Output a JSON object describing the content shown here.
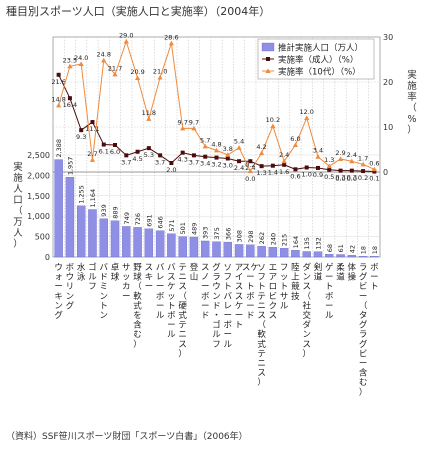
{
  "chart_data": {
    "type": "bar",
    "title": "種目別スポーツ人口（実施人口と実施率）（2004年）",
    "source": "（資料）SSF笹川スポーツ財団「スポーツ白書」（2006年）",
    "ylabel_left": "実施人口（万人）",
    "ylabel_right": "実施率（%）",
    "ylim_left": [
      0,
      2500
    ],
    "ylim_right": [
      0,
      30
    ],
    "left_ticks": [
      "2,500",
      "2,000",
      "1,500",
      "1,000",
      "500",
      "0"
    ],
    "right_ticks": [
      "30",
      "20",
      "10",
      "0"
    ],
    "categories": [
      [
        "ウ",
        "ォ",
        "ー",
        "キ",
        "ン",
        "グ"
      ],
      [
        "ボ",
        "ウ",
        "リ",
        "ン",
        "グ"
      ],
      [
        "水",
        "泳"
      ],
      [
        "ゴ",
        "ル",
        "フ"
      ],
      [
        "バ",
        "ド",
        "ミ",
        "ン",
        "ト",
        "ン"
      ],
      [
        "卓",
        "球"
      ],
      [
        "サ",
        "ッ",
        "カ",
        "ー"
      ],
      [
        "野",
        "球",
        "（",
        "軟",
        "式",
        "を",
        "含",
        "む",
        "）"
      ],
      [
        "ス",
        "キ",
        "ー"
      ],
      [
        "バ",
        "レ",
        "ー",
        "ボ",
        "ー",
        "ル"
      ],
      [
        "バ",
        "ス",
        "ケ",
        "ッ",
        "ト",
        "ボ",
        "ー",
        "ル"
      ],
      [
        "テ",
        "ニ",
        "ス",
        "（",
        "硬",
        "式",
        "テ",
        "ニ",
        "ス",
        "）"
      ],
      [
        "登",
        "山"
      ],
      [
        "ス",
        "ノ",
        "ー",
        "ボ",
        "ー",
        "ド"
      ],
      [
        "グ",
        "ラ",
        "ウ",
        "ン",
        "ド",
        "・",
        "ゴ",
        "ル",
        "フ"
      ],
      [
        "ソ",
        "フ",
        "ト",
        "バ",
        "レ",
        "ー",
        "ボ",
        "ー",
        "ル"
      ],
      [
        "ア",
        "イ",
        "ス",
        "ス",
        "ケ",
        "ー",
        "ト"
      ],
      [
        "スケ",
        "ー",
        "ト",
        "ボ",
        "ー",
        "ド"
      ],
      [
        "ソ",
        "フ",
        "ト",
        "テ",
        "ニ",
        "ス",
        "（",
        "軟",
        "式",
        "テ",
        "ニ",
        "ス",
        "）"
      ],
      [
        "エ",
        "ア",
        "ロ",
        "ビ",
        "ク",
        "ス"
      ],
      [
        "フ",
        "ッ",
        "ト",
        "サ",
        "ル"
      ],
      [
        "陸",
        "上",
        "競",
        "技"
      ],
      [
        "ダ",
        "ン",
        "ス",
        "（",
        "社",
        "交",
        "ダ",
        "ン",
        "ス",
        "）"
      ],
      [
        "剣",
        "道"
      ],
      [
        "ゲ",
        "ー",
        "ト",
        "ボ",
        "ー",
        "ル"
      ],
      [
        "柔",
        "道"
      ],
      [
        "体",
        "操"
      ],
      [
        "ラ",
        "グ",
        "ビ",
        "ー",
        "（",
        "タ",
        "グ",
        "ラ",
        "グ",
        "ビ",
        "ー",
        "含",
        "む",
        "）"
      ],
      [
        "ボ",
        "ー",
        "ト"
      ]
    ],
    "series": [
      {
        "name": "推計実施人口（万人）",
        "kind": "bar",
        "axis": "left",
        "color": "#8f8fe6",
        "values": [
          2388,
          1957,
          1255,
          1164,
          939,
          889,
          749,
          726,
          691,
          646,
          571,
          501,
          489,
          393,
          375,
          366,
          308,
          298,
          262,
          240,
          215,
          164,
          135,
          132,
          68,
          61,
          42,
          18,
          18
        ],
        "labels": [
          "2,388",
          "1,957",
          "1,255",
          "1,164",
          "939",
          "889",
          "749",
          "726",
          "691",
          "646",
          "571",
          "501",
          "489",
          "393",
          "375",
          "366",
          "308",
          "298",
          "262",
          "240",
          "215",
          "164",
          "135",
          "132",
          "68",
          "61",
          "42",
          "18",
          "18"
        ]
      },
      {
        "name": "実施率（成人）（%）",
        "kind": "line",
        "axis": "right",
        "color": "#4a0c0c",
        "values": [
          21.6,
          16.4,
          9.3,
          11.1,
          6.1,
          6.0,
          3.7,
          4.5,
          5.3,
          3.7,
          2.0,
          4.3,
          3.7,
          3.4,
          3.2,
          3.0,
          2.4,
          2.4,
          1.3,
          1.4,
          1.6,
          0.6,
          1.0,
          0.9,
          0.5,
          0.3,
          0.3,
          0.2,
          0.1
        ],
        "labels": [
          "21.6",
          "16.4",
          "9.3",
          "11.1",
          "6.1",
          "6.0",
          "3.7",
          "4.5",
          "5.3",
          "3.7",
          "2.0",
          "4.3",
          "3.7",
          "3.4",
          "3.2",
          "3.0",
          "2.4",
          "2.4",
          "1.3",
          "1.4",
          "1.6",
          "0.6",
          "1.0",
          "0.9",
          "0.5",
          "0.3",
          "0.3",
          "0.2",
          "0.1"
        ]
      },
      {
        "name": "実施率（10代）（%）",
        "kind": "line",
        "axis": "right",
        "color": "#f08a3c",
        "values": [
          14.8,
          23.5,
          24.0,
          2.7,
          24.8,
          21.7,
          29.0,
          20.9,
          11.8,
          21.0,
          28.6,
          9.7,
          9.7,
          5.7,
          4.8,
          3.8,
          5.4,
          0.2,
          4.2,
          10.2,
          2.4,
          6.0,
          12.0,
          3.4,
          1.3,
          2.9,
          2.4,
          1.7,
          0.6
        ],
        "labels": [
          "14.8",
          "23.5",
          "24.0",
          "2.7",
          "24.8",
          "21.7",
          "29.0",
          "20.9",
          "11.8",
          "21.0",
          "28.6",
          "9.7",
          "9.7",
          "5.7",
          "4.8",
          "3.8",
          "5.4",
          "0.2",
          "4.2",
          "10.2",
          "2.4",
          "6.0",
          "12.0",
          "3.4",
          "1.3",
          "2.9",
          "2.4",
          "1.7",
          "0.6"
        ]
      }
    ],
    "extra_labels": [
      "0.0",
      "0.0",
      "0.0"
    ],
    "legend_position": "top-right",
    "grid": true
  }
}
